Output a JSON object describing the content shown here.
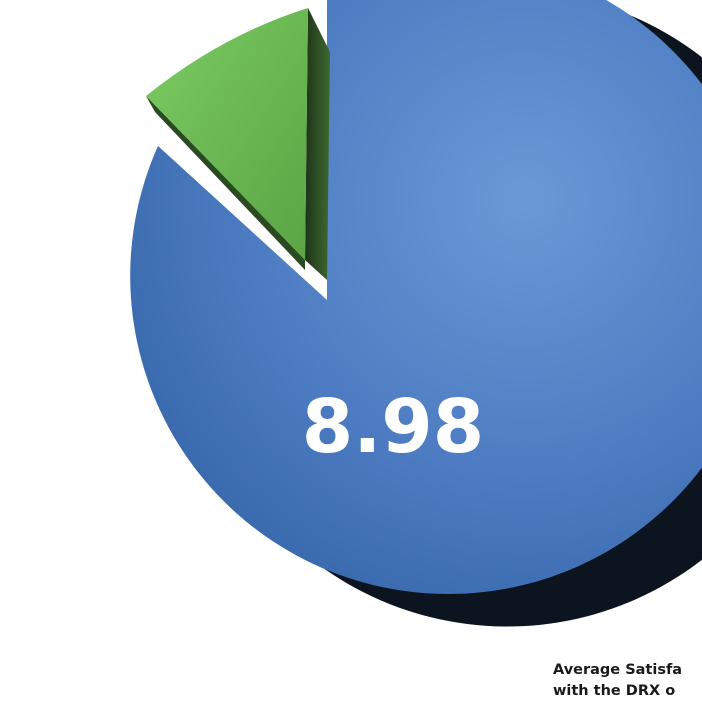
{
  "chart_data": {
    "type": "pie",
    "title": "",
    "center_label": "8.98",
    "slices": [
      {
        "label": "",
        "value": 8.98,
        "color": "#4f7fc6"
      },
      {
        "label": "",
        "value": 1.02,
        "color": "#6fbf57"
      }
    ],
    "total": 10,
    "style": "3d-exploded",
    "caption_lines": [
      "Average Satisfa",
      "with the DRX o"
    ]
  }
}
